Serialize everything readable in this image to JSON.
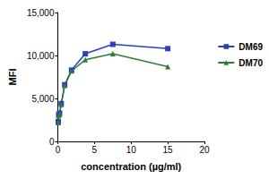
{
  "chart_data": {
    "type": "line",
    "x_label": "concentration (µg/ml)",
    "y_label": "MFI",
    "x": [
      0.059,
      0.117,
      0.234,
      0.469,
      0.938,
      1.875,
      3.75,
      7.5,
      15
    ],
    "series": [
      {
        "name": "DM69",
        "color": "#2a3fc0",
        "marker": "square",
        "values": [
          2300,
          3100,
          3300,
          4400,
          6600,
          8300,
          10200,
          11300,
          10800
        ]
      },
      {
        "name": "DM70",
        "color": "#2e7d32",
        "marker": "triangle",
        "values": [
          2200,
          3000,
          3200,
          4300,
          6500,
          8200,
          9500,
          10200,
          8700
        ]
      }
    ],
    "xlim": [
      0,
      20
    ],
    "xticks": [
      0,
      5,
      10,
      15,
      20
    ],
    "ylim": [
      0,
      15000
    ],
    "yticks": [
      0,
      5000,
      10000,
      15000
    ],
    "grid": false,
    "legend": "right"
  }
}
